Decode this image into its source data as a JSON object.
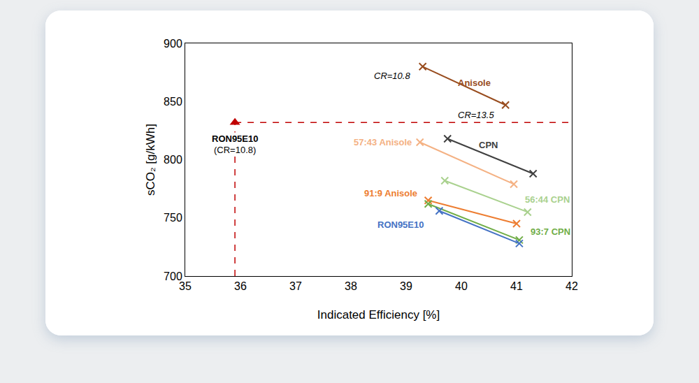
{
  "chart_data": {
    "type": "scatter",
    "x_label": "Indicated Efficiency [%]",
    "y_label": "sCO₂ [g/kWh]",
    "xlim": [
      35,
      42
    ],
    "xticks": [
      35,
      36,
      37,
      38,
      39,
      40,
      41,
      42
    ],
    "ylim": [
      700,
      900
    ],
    "yticks": [
      700,
      750,
      800,
      850,
      900
    ],
    "grid": false,
    "series": [
      {
        "name": "Anisole",
        "color": "#984c1e",
        "marker": "x",
        "line_style": "solid",
        "x": [
          39.3,
          40.8
        ],
        "values": [
          880,
          847
        ]
      },
      {
        "name": "CPN",
        "color": "#404040",
        "marker": "x",
        "line_style": "solid",
        "x": [
          39.75,
          41.3
        ],
        "values": [
          818,
          788
        ]
      },
      {
        "name": "57:43 Anisole",
        "color": "#f4b183",
        "marker": "x",
        "line_style": "solid",
        "x": [
          39.25,
          40.95
        ],
        "values": [
          815,
          779
        ]
      },
      {
        "name": "56:44 CPN",
        "color": "#a9d18e",
        "marker": "x",
        "line_style": "solid",
        "x": [
          39.7,
          41.2
        ],
        "values": [
          782,
          755
        ]
      },
      {
        "name": "91:9 Anisole",
        "color": "#ed7d31",
        "marker": "x",
        "line_style": "solid",
        "x": [
          39.4,
          41.0
        ],
        "values": [
          765,
          745
        ]
      },
      {
        "name": "93:7 CPN",
        "color": "#70ad47",
        "marker": "x",
        "line_style": "solid",
        "x": [
          39.4,
          41.05
        ],
        "values": [
          762,
          731
        ]
      },
      {
        "name": "RON95E10",
        "color": "#4472c4",
        "marker": "x",
        "line_style": "solid",
        "x": [
          39.6,
          41.05
        ],
        "values": [
          756,
          728
        ]
      }
    ],
    "reference": {
      "name": "RON95E10",
      "annotation": "(CR=10.8)",
      "color": "#c00000",
      "marker": "triangle",
      "line_style": "dash",
      "x": 35.9,
      "value": 832
    },
    "annotations": [
      {
        "text": "CR=10.8"
      },
      {
        "text": "CR=13.5"
      }
    ]
  }
}
